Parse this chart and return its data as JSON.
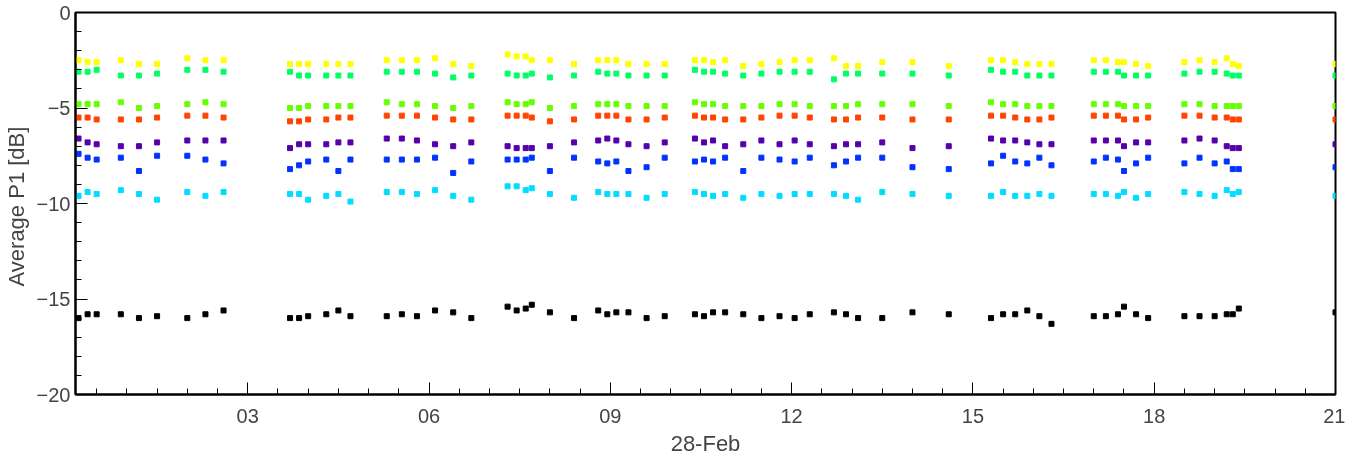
{
  "chart_data": {
    "type": "scatter",
    "xlabel": "28-Feb",
    "ylabel": "Average P1  [dB]",
    "xlim": [
      0.15,
      21
    ],
    "xticks": [
      {
        "value": 3,
        "label": "03"
      },
      {
        "value": 6,
        "label": "06"
      },
      {
        "value": 9,
        "label": "09"
      },
      {
        "value": 12,
        "label": "12"
      },
      {
        "value": 15,
        "label": "15"
      },
      {
        "value": 18,
        "label": "18"
      },
      {
        "value": 21,
        "label": "21"
      }
    ],
    "ylim": [
      -20,
      0
    ],
    "yticks": [
      -20,
      -15,
      -10,
      -5,
      0
    ],
    "grid": false,
    "marker": "square",
    "x": [
      0.2,
      0.35,
      0.5,
      0.7,
      0.9,
      1.2,
      1.5,
      1.75,
      2.0,
      2.3,
      2.6,
      3.1,
      3.7,
      3.85,
      4.0,
      4.15,
      4.3,
      4.5,
      4.7,
      5.0,
      5.3,
      5.55,
      5.8,
      5.95,
      6.1,
      6.4,
      6.7,
      7.0,
      7.3,
      7.45,
      7.6,
      7.65,
      7.7,
      8.0,
      8.4,
      8.6,
      8.8,
      8.95,
      9.1,
      9.2,
      9.3,
      9.6,
      9.9,
      10.15,
      10.4,
      10.55,
      10.7,
      10.8,
      10.9,
      11.2,
      11.5,
      11.65,
      11.8,
      12.05,
      12.3,
      12.5,
      12.7,
      12.9,
      13.1,
      13.3,
      13.5,
      14.0,
      14.6,
      14.95,
      15.3,
      15.5,
      15.7,
      15.8,
      15.9,
      16.1,
      16.3,
      16.65,
      17.0,
      17.2,
      17.4,
      17.45,
      17.5,
      17.7,
      17.9,
      18.2,
      18.5,
      18.75,
      19.0,
      19.1,
      19.2,
      19.3,
      19.4,
      20.2,
      21.0
    ],
    "series": [
      {
        "color": "#ffff00",
        "values": [
          -2.5,
          -2.6,
          -2.6,
          null,
          -2.5,
          -2.7,
          -2.7,
          null,
          -2.4,
          -2.5,
          -2.5,
          null,
          -2.7,
          -2.7,
          -2.7,
          null,
          -2.7,
          -2.7,
          -2.7,
          null,
          -2.5,
          -2.5,
          -2.5,
          null,
          -2.4,
          -2.7,
          -2.8,
          null,
          -2.2,
          -2.3,
          -2.3,
          null,
          -2.5,
          -2.5,
          -2.7,
          null,
          -2.5,
          -2.5,
          -2.5,
          null,
          -2.7,
          -2.7,
          -2.7,
          null,
          -2.5,
          -2.5,
          -2.6,
          null,
          -2.5,
          -2.8,
          -2.7,
          null,
          -2.6,
          -2.5,
          -2.5,
          null,
          -2.4,
          -2.8,
          -2.8,
          null,
          -2.6,
          -2.6,
          -2.8,
          null,
          -2.5,
          -2.5,
          -2.6,
          null,
          -2.7,
          -2.7,
          -2.7,
          null,
          -2.5,
          -2.5,
          -2.6,
          null,
          -2.6,
          -2.7,
          -2.8,
          null,
          -2.6,
          -2.5,
          -2.6,
          null,
          -2.4,
          -2.7,
          -2.8,
          null,
          -2.7
        ]
      },
      {
        "color": "#00ff66",
        "values": [
          -3.1,
          -3.1,
          -3.0,
          null,
          -3.3,
          -3.3,
          -3.2,
          null,
          -3.0,
          -3.0,
          -3.1,
          null,
          -3.1,
          -3.3,
          -3.3,
          null,
          -3.3,
          -3.3,
          -3.3,
          null,
          -3.1,
          -3.1,
          -3.1,
          null,
          -3.2,
          -3.4,
          -3.3,
          null,
          -3.2,
          -3.3,
          -3.3,
          null,
          -3.2,
          -3.4,
          -3.3,
          null,
          -3.1,
          -3.2,
          -3.2,
          null,
          -3.3,
          -3.3,
          -3.3,
          null,
          -3.0,
          -3.1,
          -3.1,
          null,
          -3.2,
          -3.3,
          -3.2,
          null,
          -3.1,
          -3.1,
          -3.1,
          null,
          -3.5,
          -3.2,
          -3.2,
          null,
          -3.2,
          -3.2,
          -3.3,
          null,
          -3.0,
          -3.1,
          -3.1,
          null,
          -3.3,
          -3.3,
          -3.3,
          null,
          -3.1,
          -3.1,
          -3.1,
          null,
          -3.3,
          -3.3,
          -3.3,
          null,
          -3.2,
          -3.1,
          -3.1,
          null,
          -3.2,
          -3.3,
          -3.3,
          null,
          -3.3
        ]
      },
      {
        "color": "#66ff00",
        "values": [
          -4.8,
          -4.8,
          -4.8,
          null,
          -4.7,
          -5.0,
          -4.9,
          null,
          -4.8,
          -4.7,
          -4.8,
          null,
          -5.0,
          -5.0,
          -4.9,
          null,
          -4.9,
          -4.9,
          -4.9,
          null,
          -4.7,
          -4.8,
          -4.8,
          null,
          -4.9,
          -5.0,
          -4.9,
          null,
          -4.7,
          -4.8,
          -4.8,
          null,
          -4.7,
          -5.0,
          -4.9,
          null,
          -4.8,
          -4.8,
          -4.8,
          null,
          -4.9,
          -4.9,
          -4.9,
          null,
          -4.7,
          -4.8,
          -4.8,
          null,
          -4.9,
          -4.9,
          -4.9,
          null,
          -4.8,
          -4.8,
          -4.9,
          null,
          -4.9,
          -4.9,
          -4.8,
          null,
          -4.8,
          -4.8,
          -4.9,
          null,
          -4.7,
          -4.8,
          -4.8,
          null,
          -4.9,
          -4.9,
          -4.9,
          null,
          -4.8,
          -4.8,
          -4.8,
          null,
          -4.9,
          -4.9,
          -4.9,
          null,
          -4.8,
          -4.8,
          -4.9,
          null,
          -4.9,
          -4.9,
          -4.9,
          null,
          -4.9
        ]
      },
      {
        "color": "#ff4400",
        "values": [
          -5.5,
          -5.5,
          -5.6,
          null,
          -5.6,
          -5.6,
          -5.5,
          null,
          -5.4,
          -5.4,
          -5.5,
          null,
          -5.7,
          -5.7,
          -5.6,
          null,
          -5.6,
          -5.5,
          -5.5,
          null,
          -5.4,
          -5.4,
          -5.4,
          null,
          -5.5,
          -5.6,
          -5.6,
          null,
          -5.4,
          -5.4,
          -5.4,
          null,
          -5.5,
          -5.7,
          -5.6,
          null,
          -5.4,
          -5.4,
          -5.4,
          null,
          -5.6,
          -5.6,
          -5.5,
          null,
          -5.4,
          -5.5,
          -5.5,
          null,
          -5.6,
          -5.6,
          -5.5,
          null,
          -5.4,
          -5.4,
          -5.5,
          null,
          -5.6,
          -5.6,
          -5.5,
          null,
          -5.5,
          -5.6,
          -5.6,
          null,
          -5.4,
          -5.4,
          -5.5,
          null,
          -5.6,
          -5.6,
          -5.5,
          null,
          -5.4,
          -5.4,
          -5.4,
          null,
          -5.6,
          -5.6,
          -5.5,
          null,
          -5.4,
          -5.4,
          -5.5,
          null,
          -5.5,
          -5.6,
          -5.6,
          null,
          -5.6
        ]
      },
      {
        "color": "#5500aa",
        "values": [
          -6.6,
          -6.8,
          -6.9,
          null,
          -7.0,
          -7.0,
          -6.8,
          null,
          -6.7,
          -6.7,
          -6.7,
          null,
          -7.1,
          -6.9,
          -6.9,
          null,
          -6.9,
          -6.8,
          -6.8,
          null,
          -6.6,
          -6.6,
          -6.7,
          null,
          -6.9,
          -7.0,
          -6.8,
          null,
          -7.0,
          -7.1,
          -7.1,
          null,
          -7.1,
          -7.0,
          -6.8,
          null,
          -6.7,
          -6.6,
          -6.7,
          null,
          -6.9,
          -7.0,
          -6.8,
          null,
          -6.6,
          -6.8,
          -6.7,
          null,
          -7.0,
          -6.9,
          -6.7,
          null,
          -6.9,
          -6.7,
          -6.9,
          null,
          -7.0,
          -6.9,
          -6.9,
          null,
          -6.8,
          -7.1,
          -7.0,
          null,
          -6.6,
          -6.7,
          -6.7,
          null,
          -6.8,
          -6.9,
          -6.9,
          null,
          -6.7,
          -6.7,
          -6.7,
          null,
          -7.0,
          -6.8,
          -6.8,
          null,
          -6.7,
          -6.6,
          -6.7,
          null,
          -7.0,
          -7.1,
          -7.1,
          null,
          -6.9
        ]
      },
      {
        "color": "#0033ff",
        "values": [
          -7.4,
          -7.6,
          -7.7,
          null,
          -7.6,
          -8.3,
          -7.5,
          null,
          -7.5,
          -7.7,
          -7.9,
          null,
          -8.2,
          -8.0,
          -7.8,
          null,
          -7.7,
          -8.3,
          -7.7,
          null,
          -7.7,
          -7.7,
          -7.7,
          null,
          -7.6,
          -8.4,
          -7.8,
          null,
          -7.7,
          -7.7,
          -7.7,
          null,
          -7.6,
          -8.3,
          -7.6,
          null,
          -7.8,
          -7.9,
          -7.8,
          null,
          -8.3,
          -8.1,
          -7.6,
          null,
          -7.8,
          -7.7,
          -7.8,
          null,
          -7.6,
          -8.3,
          -7.6,
          null,
          -7.7,
          -7.8,
          -7.6,
          null,
          -8.0,
          -7.8,
          -7.6,
          null,
          -7.6,
          -8.1,
          -8.2,
          null,
          -7.9,
          -7.5,
          -7.8,
          null,
          -7.9,
          -7.6,
          -8.0,
          null,
          -7.8,
          -7.6,
          -7.7,
          null,
          -8.3,
          -7.9,
          -7.6,
          null,
          -7.9,
          -7.6,
          -7.9,
          null,
          -7.8,
          -8.2,
          -8.2,
          null,
          -8.1
        ]
      },
      {
        "color": "#00ddff",
        "values": [
          -9.6,
          -9.4,
          -9.5,
          null,
          -9.3,
          -9.5,
          -9.8,
          null,
          -9.4,
          -9.6,
          -9.4,
          null,
          -9.5,
          -9.5,
          -9.8,
          null,
          -9.6,
          -9.5,
          -9.9,
          null,
          -9.4,
          -9.4,
          -9.5,
          null,
          -9.3,
          -9.6,
          -9.8,
          null,
          -9.1,
          -9.1,
          -9.3,
          null,
          -9.2,
          -9.5,
          -9.7,
          null,
          -9.4,
          -9.5,
          -9.5,
          null,
          -9.5,
          -9.7,
          -9.5,
          null,
          -9.4,
          -9.5,
          -9.6,
          null,
          -9.5,
          -9.7,
          -9.5,
          null,
          -9.6,
          -9.5,
          -9.5,
          null,
          -9.5,
          -9.6,
          -9.8,
          null,
          -9.4,
          -9.5,
          -9.6,
          null,
          -9.6,
          -9.4,
          -9.6,
          null,
          -9.6,
          -9.5,
          -9.6,
          null,
          -9.5,
          -9.5,
          -9.6,
          null,
          -9.4,
          -9.7,
          -9.5,
          null,
          -9.4,
          -9.5,
          -9.6,
          null,
          -9.3,
          -9.5,
          -9.4,
          null,
          -9.6
        ]
      },
      {
        "color": "#000000",
        "values": [
          -16.0,
          -15.8,
          -15.8,
          null,
          -15.8,
          -16.0,
          -15.9,
          null,
          -16.0,
          -15.8,
          -15.6,
          null,
          -16.0,
          -16.0,
          -15.9,
          null,
          -15.8,
          -15.6,
          -15.9,
          null,
          -15.9,
          -15.8,
          -15.9,
          null,
          -15.6,
          -15.7,
          -16.0,
          null,
          -15.4,
          -15.6,
          -15.5,
          null,
          -15.3,
          -15.7,
          -16.0,
          null,
          -15.6,
          -15.8,
          -15.7,
          null,
          -15.7,
          -16.0,
          -15.9,
          null,
          -15.8,
          -15.9,
          -15.7,
          null,
          -15.7,
          -15.8,
          -16.0,
          null,
          -15.9,
          -16.0,
          -15.8,
          null,
          -15.7,
          -15.8,
          -16.0,
          null,
          -16.0,
          -15.7,
          -15.8,
          null,
          -16.0,
          -15.8,
          -15.8,
          null,
          -15.6,
          -15.9,
          -16.3,
          null,
          -15.9,
          -15.9,
          -15.8,
          null,
          -15.4,
          -15.8,
          -16.0,
          null,
          -15.9,
          -15.9,
          -15.9,
          null,
          -15.8,
          -15.8,
          -15.5,
          null,
          -15.7
        ]
      }
    ]
  }
}
